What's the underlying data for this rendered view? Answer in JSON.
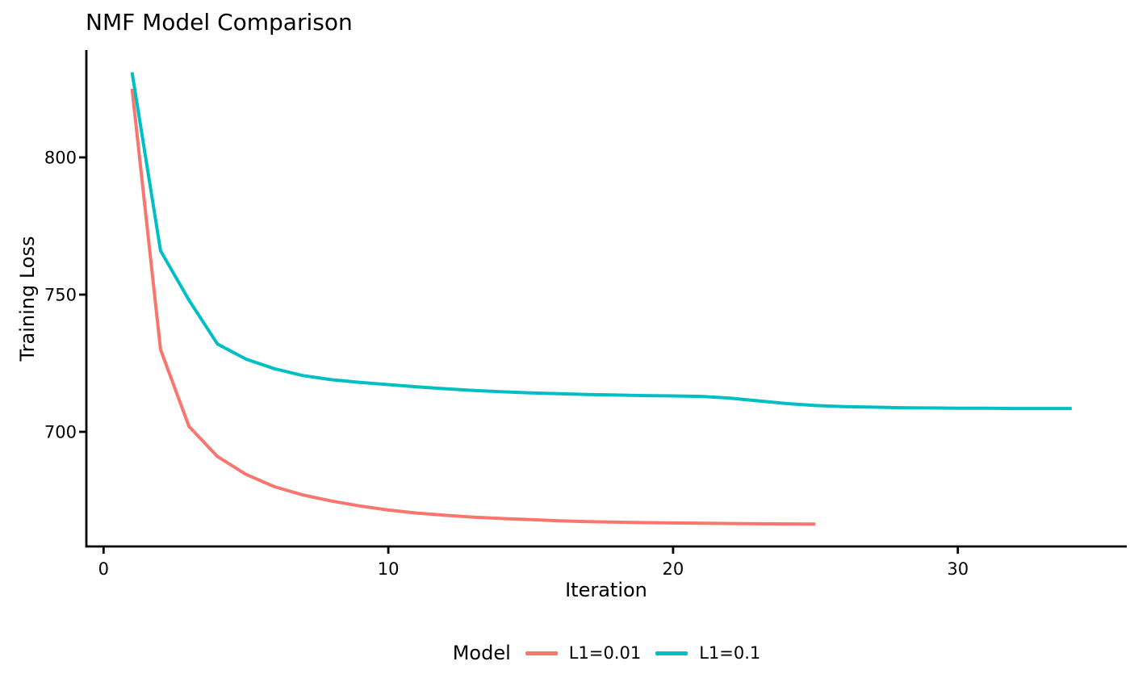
{
  "page": {
    "background": "#ffffff"
  },
  "chart_data": {
    "type": "line",
    "title": "NMF Model Comparison",
    "xlabel": "Iteration",
    "ylabel": "Training Loss",
    "x_axis": {
      "ticks": [
        0,
        10,
        20,
        30
      ],
      "range": [
        -0.6,
        36.5
      ]
    },
    "y_axis": {
      "ticks": [
        700,
        750,
        800
      ],
      "range": [
        655,
        840
      ]
    },
    "grid": "off",
    "legend": {
      "title": "Model",
      "position": "bottom"
    },
    "axis_color": "#000000",
    "series": [
      {
        "name": "L1=0.01",
        "color": "#F8766D",
        "x": [
          1,
          2,
          3,
          4,
          5,
          6,
          7,
          8,
          9,
          10,
          11,
          12,
          13,
          14,
          15,
          16,
          17,
          18,
          19,
          20,
          21,
          22,
          23,
          24,
          25
        ],
        "values": [
          825,
          730,
          702,
          691,
          684.5,
          680,
          677,
          674.8,
          673,
          671.5,
          670.4,
          669.6,
          668.9,
          668.4,
          668,
          667.6,
          667.3,
          667.1,
          666.9,
          666.8,
          666.7,
          666.6,
          666.5,
          666.45,
          666.4
        ]
      },
      {
        "name": "L1=0.1",
        "color": "#00BFC4",
        "x": [
          1,
          2,
          3,
          4,
          5,
          6,
          7,
          8,
          9,
          10,
          11,
          12,
          13,
          14,
          15,
          16,
          17,
          18,
          19,
          20,
          21,
          22,
          23,
          24,
          25,
          26,
          27,
          28,
          29,
          30,
          31,
          32,
          33,
          34
        ],
        "values": [
          831,
          766,
          748,
          732,
          726.5,
          723,
          720.5,
          719,
          718,
          717.2,
          716.4,
          715.7,
          715.1,
          714.6,
          714.2,
          713.9,
          713.6,
          713.4,
          713.2,
          713.1,
          712.9,
          712.3,
          711.3,
          710.3,
          709.6,
          709.2,
          709,
          708.8,
          708.7,
          708.6,
          708.6,
          708.5,
          708.5,
          708.5
        ]
      }
    ]
  }
}
